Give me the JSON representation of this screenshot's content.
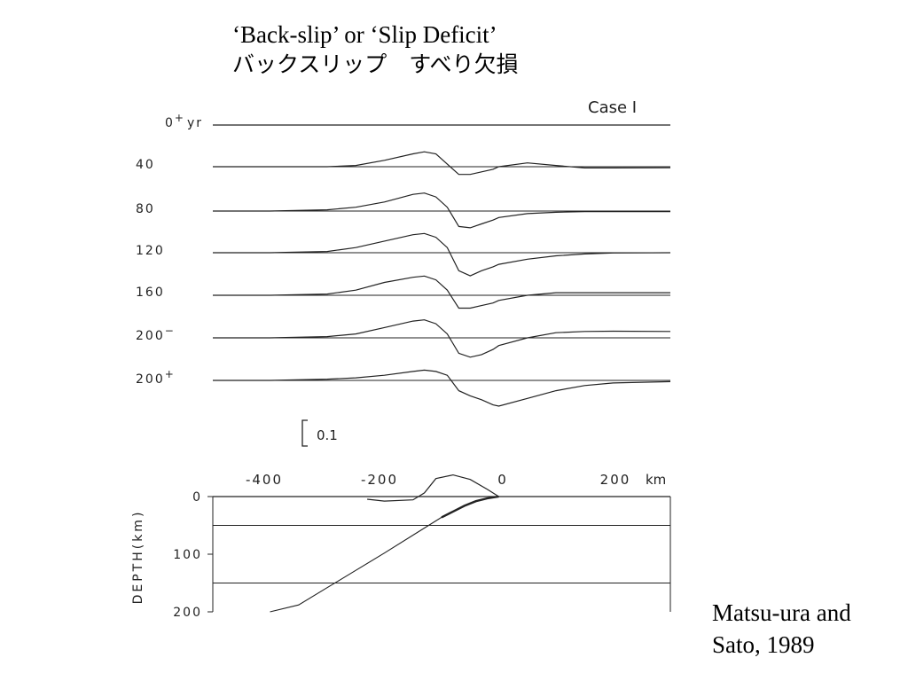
{
  "slide": {
    "title_line1": "‘Back-slip’ or ‘Slip Deficit’",
    "title_line2": "バックスリップ　すべり欠損",
    "citation_line1": "Matsu-ura and",
    "citation_line2": "Sato, 1989"
  },
  "figure": {
    "case_label": "Case I",
    "scale_bar_label": "0.1",
    "depth_axis_label": "DEPTH(km)",
    "x_axis_unit": "km",
    "ink_color": "#222222"
  },
  "chart_data": {
    "type": "line",
    "title": "Case I",
    "x_unit": "km",
    "x_ticks": [
      "-400",
      "-200",
      "0",
      "200"
    ],
    "x_range": [
      -500,
      300
    ],
    "row_labels": [
      "0+ yr",
      "40",
      "80",
      "120",
      "160",
      "200−",
      "200+"
    ],
    "row_labels_display": [
      {
        "main": "0",
        "sup": "+",
        "tail": "yr"
      },
      {
        "main": "40",
        "sup": "",
        "tail": ""
      },
      {
        "main": "80",
        "sup": "",
        "tail": ""
      },
      {
        "main": "120",
        "sup": "",
        "tail": ""
      },
      {
        "main": "160",
        "sup": "",
        "tail": ""
      },
      {
        "main": "200",
        "sup": "−",
        "tail": ""
      },
      {
        "main": "200",
        "sup": "+",
        "tail": ""
      }
    ],
    "displacement_scale": 0.1,
    "series": [
      {
        "x": [
          -500,
          300
        ],
        "y": [
          0,
          0
        ]
      },
      {
        "x": [
          -500,
          -400,
          -300,
          -250,
          -200,
          -150,
          -130,
          -110,
          -90,
          -70,
          -50,
          -30,
          -10,
          0,
          50,
          100,
          150,
          200,
          300
        ],
        "y": [
          0,
          0,
          0,
          0.005,
          0.025,
          0.05,
          0.058,
          0.05,
          0.01,
          -0.03,
          -0.03,
          -0.02,
          -0.01,
          0,
          0.015,
          0.005,
          -0.005,
          -0.005,
          -0.004
        ]
      },
      {
        "x": [
          -500,
          -400,
          -300,
          -250,
          -200,
          -150,
          -130,
          -110,
          -90,
          -70,
          -50,
          -30,
          -10,
          0,
          50,
          100,
          150,
          200,
          300
        ],
        "y": [
          0,
          0,
          0.005,
          0.015,
          0.035,
          0.065,
          0.07,
          0.055,
          0.015,
          -0.06,
          -0.065,
          -0.05,
          -0.035,
          -0.025,
          -0.01,
          -0.005,
          -0.002,
          -0.002,
          -0.002
        ]
      },
      {
        "x": [
          -500,
          -400,
          -300,
          -250,
          -200,
          -150,
          -130,
          -110,
          -90,
          -70,
          -50,
          -30,
          -10,
          0,
          50,
          100,
          150,
          200,
          300
        ],
        "y": [
          0,
          0,
          0.005,
          0.02,
          0.045,
          0.07,
          0.075,
          0.06,
          0.02,
          -0.07,
          -0.09,
          -0.07,
          -0.055,
          -0.045,
          -0.025,
          -0.012,
          -0.005,
          -0.001,
          0
        ]
      },
      {
        "x": [
          -500,
          -400,
          -300,
          -250,
          -200,
          -150,
          -130,
          -110,
          -90,
          -70,
          -50,
          -30,
          -10,
          0,
          50,
          100,
          150,
          200,
          300
        ],
        "y": [
          0,
          0,
          0.005,
          0.02,
          0.05,
          0.07,
          0.075,
          0.06,
          0.02,
          -0.05,
          -0.05,
          -0.04,
          -0.03,
          -0.02,
          0,
          0.01,
          0.01,
          0.01,
          0.01
        ]
      },
      {
        "x": [
          -500,
          -400,
          -300,
          -250,
          -200,
          -150,
          -130,
          -110,
          -90,
          -70,
          -50,
          -30,
          -10,
          0,
          50,
          100,
          150,
          200,
          300
        ],
        "y": [
          0,
          0,
          0.005,
          0.015,
          0.04,
          0.065,
          0.07,
          0.055,
          0.015,
          -0.06,
          -0.075,
          -0.065,
          -0.045,
          -0.03,
          0,
          0.02,
          0.025,
          0.026,
          0.025
        ]
      },
      {
        "x": [
          -500,
          -400,
          -300,
          -250,
          -200,
          -150,
          -130,
          -110,
          -90,
          -70,
          -50,
          -30,
          -10,
          0,
          50,
          100,
          150,
          200,
          300
        ],
        "y": [
          0,
          0,
          0.005,
          0.01,
          0.02,
          0.035,
          0.04,
          0.035,
          0.02,
          -0.04,
          -0.06,
          -0.075,
          -0.095,
          -0.1,
          -0.07,
          -0.04,
          -0.02,
          -0.01,
          -0.005
        ]
      }
    ],
    "depth_axis": {
      "label": "DEPTH(km)",
      "ticks": [
        "0",
        "100",
        "200"
      ],
      "range": [
        0,
        200
      ],
      "layer_boundaries_km": [
        50,
        150
      ],
      "trench_x_km": 0
    },
    "plate_interface": {
      "x": [
        0,
        -20,
        -40,
        -60,
        -80,
        -100,
        -150,
        -200,
        -250,
        -300,
        -350,
        -400
      ],
      "depth": [
        0,
        3,
        8,
        16,
        26,
        36,
        67,
        98,
        128,
        158,
        188,
        200
      ]
    },
    "slip_deficit_profile": {
      "x": [
        -230,
        -200,
        -150,
        -130,
        -110,
        -80,
        -50,
        -20,
        0
      ],
      "y": [
        -0.015,
        -0.025,
        -0.018,
        0.02,
        0.1,
        0.12,
        0.095,
        0.04,
        0
      ]
    }
  }
}
